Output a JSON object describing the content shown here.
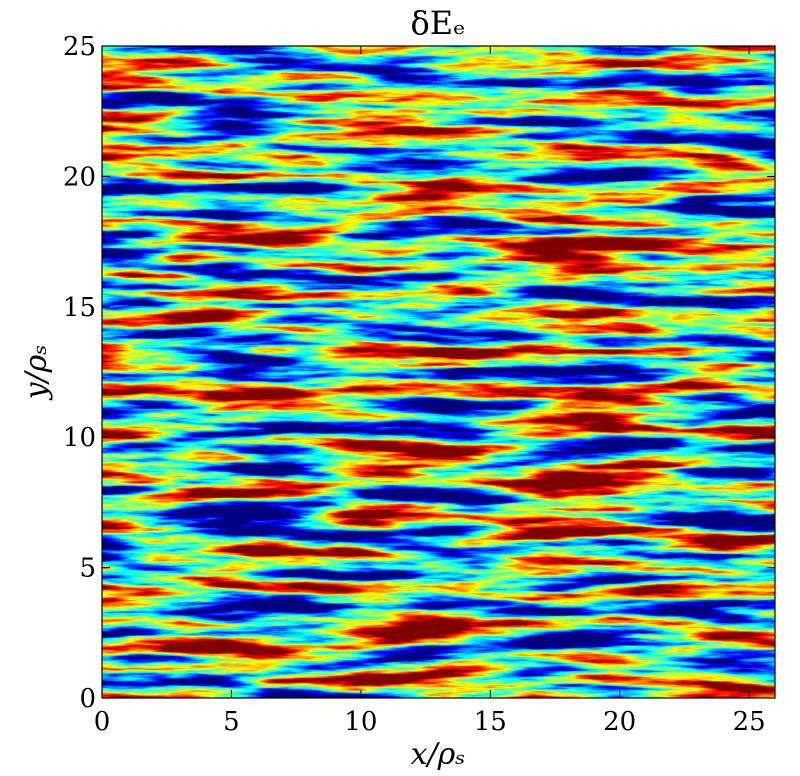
{
  "chart_data": {
    "type": "heatmap",
    "title": "δEₑ",
    "xlabel": "x/ρₛ",
    "ylabel": "y/ρₛ",
    "xlim": [
      0,
      26
    ],
    "xticks": [
      0,
      5,
      10,
      15,
      20,
      25
    ],
    "ylim": [
      0,
      25
    ],
    "yticks": [
      0,
      5,
      10,
      15,
      20,
      25
    ],
    "colormap": "jet"
  }
}
